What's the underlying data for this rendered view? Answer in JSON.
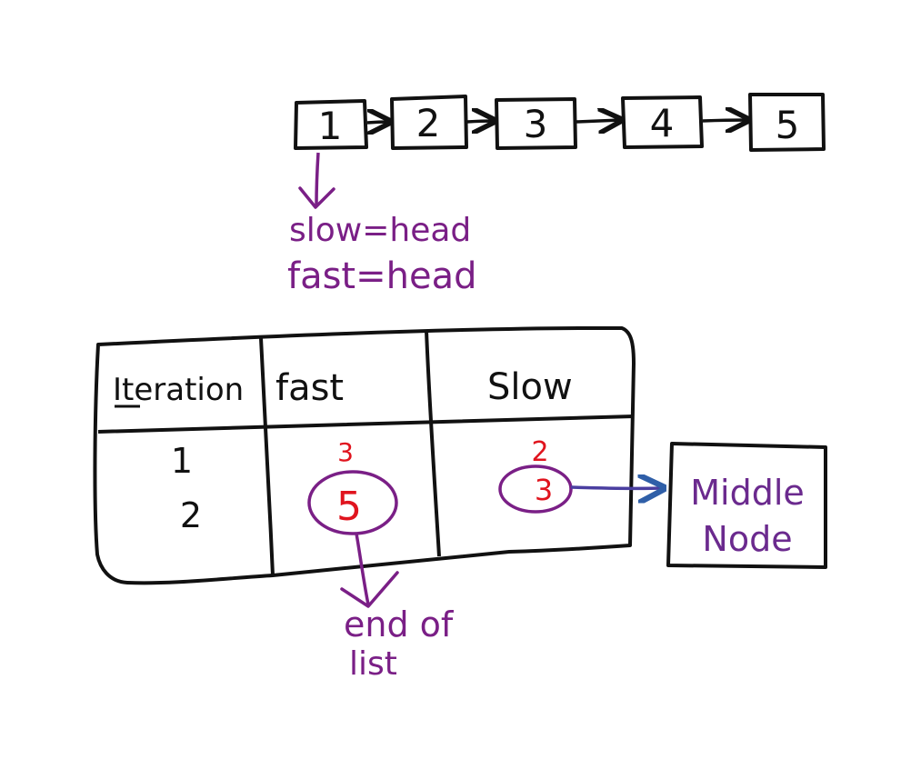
{
  "colors": {
    "ink": "#111111",
    "purple": "#7a1f86",
    "red": "#e0141e",
    "blue": "#2f5fa8"
  },
  "linked_list": {
    "nodes": [
      "1",
      "2",
      "3",
      "4",
      "5"
    ]
  },
  "pointer_labels": {
    "slow": "slow=head",
    "fast": "fast=head"
  },
  "table": {
    "headers": [
      "Iteration",
      "fast",
      "Slow"
    ],
    "rows": [
      {
        "iteration": "1",
        "fast": "3",
        "slow": "2"
      },
      {
        "iteration": "2",
        "fast": "5",
        "slow": "3"
      }
    ]
  },
  "annotations": {
    "middle_node": [
      "Middle",
      "Node"
    ],
    "end_of_list": [
      "end of",
      "list"
    ]
  }
}
